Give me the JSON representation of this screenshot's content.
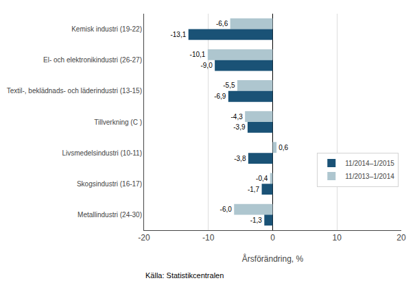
{
  "chart_data": {
    "type": "bar",
    "orientation": "horizontal",
    "categories": [
      "Kemisk industri (19-22)",
      "El- och elektronikindustri (26-27)",
      "Textil-, beklädnads- och läderindustri (13-15)",
      "Tillverkning (C )",
      "Livsmedelsindustri (10-11)",
      "Skogsindustri (16-17)",
      "Metallindustri (24-30)"
    ],
    "series": [
      {
        "name": "11/2014–1/2015",
        "color": "#1A5276",
        "values": [
          -13.1,
          -9.0,
          -6.9,
          -3.9,
          -3.8,
          -1.7,
          -1.3
        ],
        "value_labels": [
          "-13,1",
          "-9,0",
          "-6,9",
          "-3,9",
          "-3,8",
          "-1,7",
          "-1,3"
        ]
      },
      {
        "name": "11/2013–1/2014",
        "color": "#AEC6CF",
        "values": [
          -6.6,
          -10.1,
          -5.5,
          -4.3,
          0.6,
          -0.4,
          -6.0
        ],
        "value_labels": [
          "-6,6",
          "-10,1",
          "-5,5",
          "-4,3",
          "0,6",
          "-0,4",
          "-6,0"
        ]
      }
    ],
    "xlabel": "Årsförändring, %",
    "xlim": [
      -20,
      20
    ],
    "xticks": [
      -20,
      -10,
      0,
      10,
      20
    ],
    "grid": true,
    "legend": "right",
    "data_labels": true,
    "annotations": [
      "Källa: Statistikcentralen"
    ]
  }
}
